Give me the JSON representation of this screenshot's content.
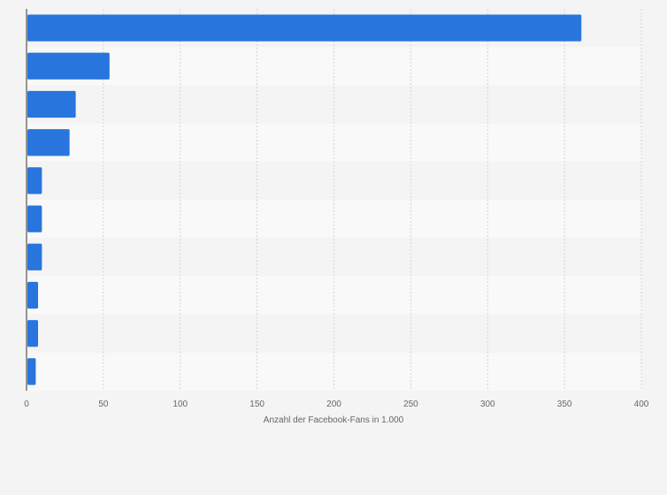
{
  "chart_data": {
    "type": "bar",
    "orientation": "horizontal",
    "categories": [
      "",
      "",
      "",
      "",
      "",
      "",
      "",
      "",
      "",
      ""
    ],
    "values": [
      361,
      54,
      32,
      28,
      10,
      10,
      10,
      7.5,
      7.5,
      6
    ],
    "title": "",
    "xlabel": "Anzahl der Facebook-Fans in 1.000",
    "ylabel": "",
    "xlim": [
      0,
      400
    ],
    "xticks": [
      "0",
      "50",
      "100",
      "150",
      "200",
      "250",
      "300",
      "350",
      "400"
    ],
    "grid": "vertical dashed",
    "bar_color": "#2876dd",
    "row_band_colors": [
      "#f4f4f4",
      "#f9f9f9"
    ],
    "background_color": "#f4f4f4"
  }
}
